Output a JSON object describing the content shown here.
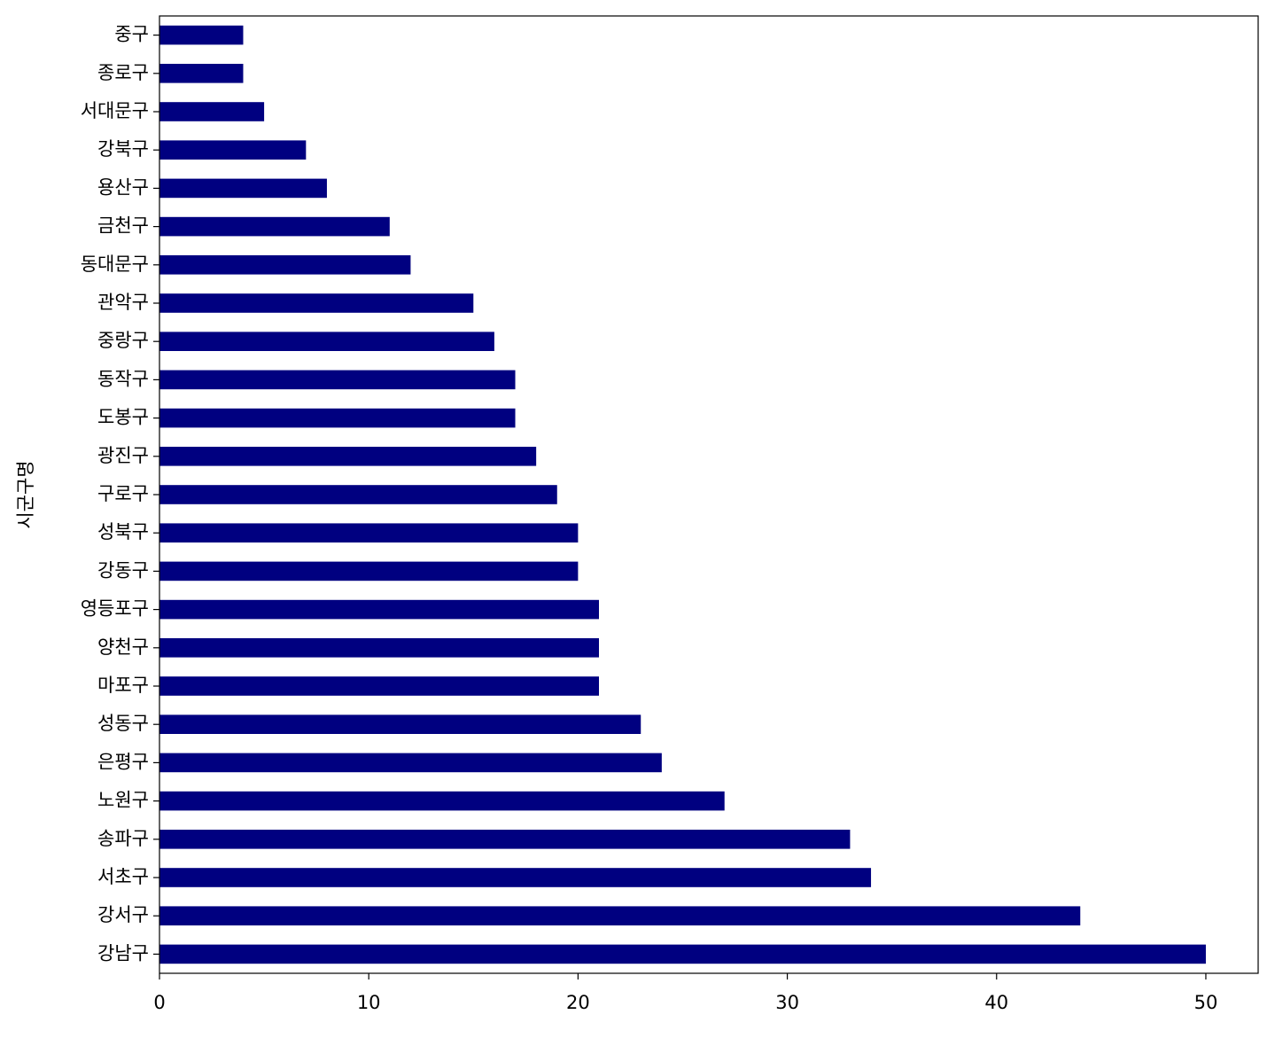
{
  "chart_data": {
    "type": "barh",
    "ylabel": "시군구명",
    "categories": [
      "강남구",
      "강서구",
      "서초구",
      "송파구",
      "노원구",
      "은평구",
      "성동구",
      "마포구",
      "양천구",
      "영등포구",
      "강동구",
      "성북구",
      "구로구",
      "광진구",
      "도봉구",
      "동작구",
      "중랑구",
      "관악구",
      "동대문구",
      "금천구",
      "용산구",
      "강북구",
      "서대문구",
      "종로구",
      "중구"
    ],
    "values": [
      50,
      44,
      34,
      33,
      27,
      24,
      23,
      21,
      21,
      21,
      20,
      20,
      19,
      18,
      17,
      17,
      16,
      15,
      12,
      11,
      8,
      7,
      5,
      4,
      4
    ],
    "color": "#000080",
    "xlim": [
      0,
      52.5
    ],
    "xticks": [
      0,
      10,
      20,
      30,
      40,
      50
    ]
  }
}
